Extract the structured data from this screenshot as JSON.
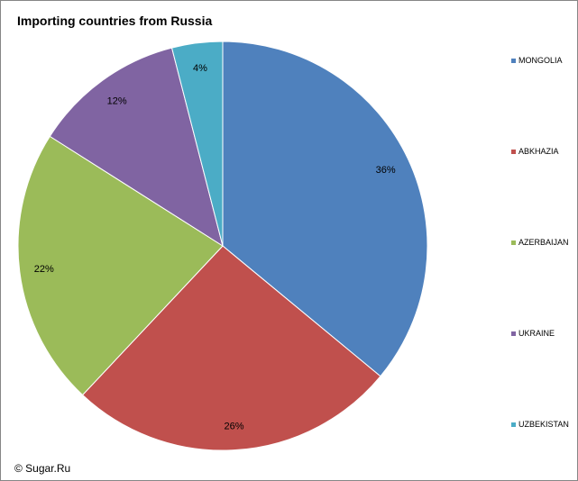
{
  "chart_data": {
    "type": "pie",
    "title": "Importing countries from Russia",
    "categories": [
      "MONGOLIA",
      "ABKHAZIA",
      "AZERBAIJAN",
      "UKRAINE",
      "UZBEKISTAN"
    ],
    "values": [
      36,
      26,
      22,
      12,
      4
    ],
    "labels": [
      "36%",
      "26%",
      "22%",
      "12%",
      "4%"
    ],
    "colors": [
      "#4F81BD",
      "#C0504D",
      "#9BBB59",
      "#8064A2",
      "#4BACC6"
    ],
    "legend": "right"
  },
  "credit": "© Sugar.Ru"
}
